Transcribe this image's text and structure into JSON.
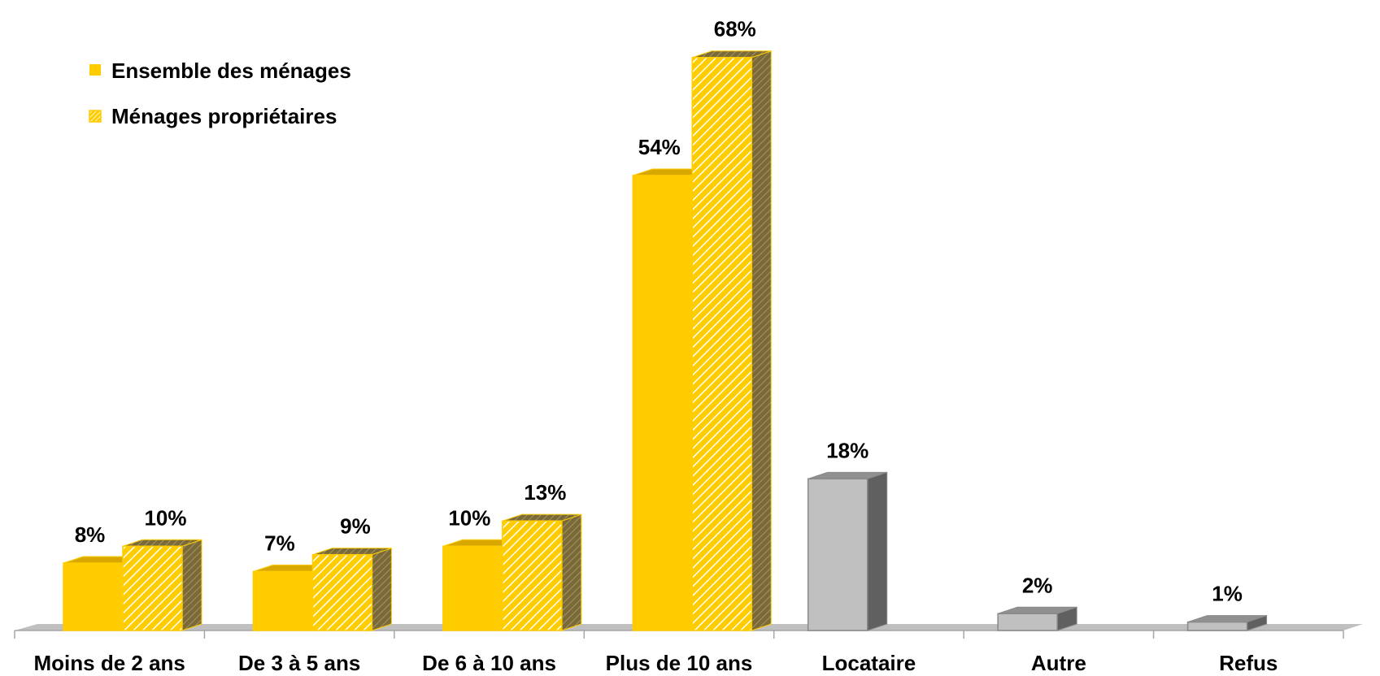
{
  "chart_data": {
    "type": "bar",
    "categories": [
      "Moins de 2 ans",
      "De 3 à 5 ans",
      "De 6 à 10 ans",
      "Plus de 10 ans",
      "Locataire",
      "Autre",
      "Refus"
    ],
    "series": [
      {
        "name": "Ensemble des ménages",
        "values": [
          8,
          7,
          10,
          54,
          18,
          2,
          1
        ],
        "labels": [
          "8%",
          "7%",
          "10%",
          "54%",
          "18%",
          "2%",
          "1%"
        ]
      },
      {
        "name": "Ménages propriétaires",
        "values": [
          10,
          9,
          13,
          68,
          null,
          null,
          null
        ],
        "labels": [
          "10%",
          "9%",
          "13%",
          "68%",
          "",
          "",
          ""
        ]
      }
    ],
    "notes": "Locataire, Autre and Refus bars (series 1) are drawn in grey.",
    "ylim": [
      0,
      70
    ],
    "grid": false,
    "legend_position": "top-left",
    "style": "3d-column",
    "colors": {
      "solid": "#FFCC00",
      "solid_top": "#D9A800",
      "hatch_line": "#FFFFFF",
      "side_dark": "#7A6A3A",
      "grey_front": "#C0C0C0",
      "grey_side": "#606060",
      "grey_top": "#909090",
      "floor": "#BFBFBF"
    }
  }
}
